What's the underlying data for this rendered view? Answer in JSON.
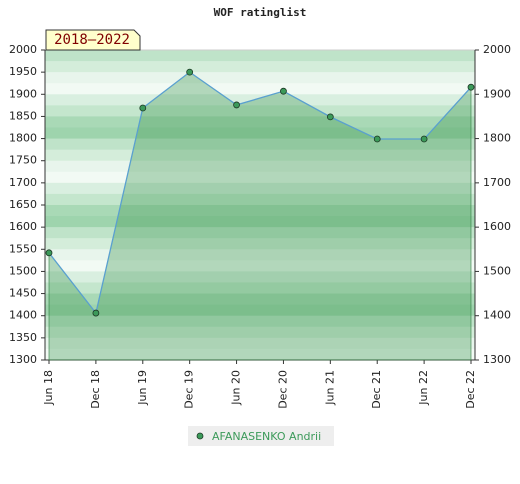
{
  "chart_data": {
    "type": "line",
    "title": "WOF ratinglist",
    "badge": "2018–2022",
    "categories": [
      "Jun 18",
      "Dec 18",
      "Jun 19",
      "Dec 19",
      "Jun 20",
      "Dec 20",
      "Jun 21",
      "Dec 21",
      "Jun 22",
      "Dec 22"
    ],
    "series": [
      {
        "name": "AFANASENKO Andrii",
        "color": "#5aa0d0",
        "marker_color": "#3c9a5a",
        "values": [
          1542,
          1406,
          1869,
          1950,
          1876,
          1907,
          1849,
          1799,
          1799,
          1916
        ]
      }
    ],
    "ylim": [
      1300,
      2000
    ],
    "yticks": [
      1300,
      1350,
      1400,
      1450,
      1500,
      1550,
      1600,
      1650,
      1700,
      1750,
      1800,
      1850,
      1900,
      1950,
      2000
    ],
    "y2lim": [
      1300,
      2000
    ],
    "y2ticks": [
      1300,
      1400,
      1500,
      1600,
      1700,
      1800,
      1900,
      2000
    ],
    "fill_area": true,
    "legend": "bottom"
  }
}
